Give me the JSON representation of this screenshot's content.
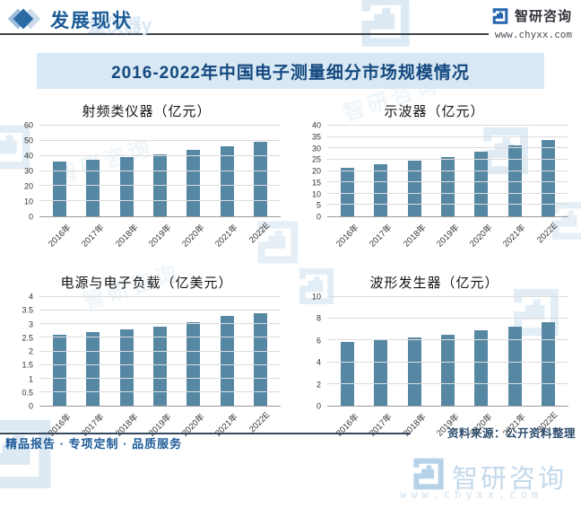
{
  "header": {
    "section_title": "发展现状",
    "brand_name": "智研咨询",
    "brand_url": "www.chyxx.com",
    "watermark_text": "量仪器y"
  },
  "banner": {
    "title": "2016-2022年中国电子测量细分市场规模情况"
  },
  "footer": {
    "source_label": "资料来源：公开资料整理",
    "tagline": "精品报告 · 专项定制 · 品质服务",
    "watermark_brand": "智研咨询",
    "watermark_url": "www.chyxx.com"
  },
  "icons": {
    "section_marker": "diamond-icon",
    "brand_logo": "zhiyan-maze-glyph"
  },
  "colors": {
    "bar_fill": "#5688a4",
    "accent_blue": "#1a5a96",
    "banner_bg": "#d8e8f4",
    "banner_text": "#15497f",
    "gridline": "#dcdcdc",
    "watermark": "#c3d9eb"
  },
  "chart_data": [
    {
      "type": "bar",
      "title": "射频类仪器（亿元）",
      "categories": [
        "2016年",
        "2017年",
        "2018年",
        "2019年",
        "2020年",
        "2021年",
        "2022E"
      ],
      "values": [
        36,
        37.3,
        39.4,
        41,
        43.7,
        46.4,
        49.5
      ],
      "ylim": [
        0,
        60
      ],
      "yticks": [
        "0",
        "10",
        "20",
        "30",
        "40",
        "50",
        "60"
      ],
      "grid": true,
      "legend": "none"
    },
    {
      "type": "bar",
      "title": "示波器（亿元）",
      "categories": [
        "2016年",
        "2017年",
        "2018年",
        "2019年",
        "2020年",
        "2021年",
        "2022E"
      ],
      "values": [
        21.3,
        22.9,
        24.4,
        26.3,
        28.7,
        31.2,
        33.7
      ],
      "ylim": [
        0,
        40
      ],
      "yticks": [
        "0",
        "5",
        "10",
        "15",
        "20",
        "25",
        "30",
        "35",
        "40"
      ],
      "grid": true,
      "legend": "none"
    },
    {
      "type": "bar",
      "title": "电源与电子负载（亿美元）",
      "categories": [
        "2016年",
        "2017年",
        "2018年",
        "2019年",
        "2020年",
        "2021年",
        "2022E"
      ],
      "values": [
        2.6,
        2.7,
        2.8,
        2.9,
        3.06,
        3.3,
        3.4
      ],
      "ylim": [
        0,
        4
      ],
      "yticks": [
        "0",
        "0.5",
        "1",
        "1.5",
        "2",
        "2.5",
        "3",
        "3.5",
        "4"
      ],
      "grid": true,
      "legend": "none"
    },
    {
      "type": "bar",
      "title": "波形发生器（亿元）",
      "categories": [
        "2016年",
        "2017年",
        "2018年",
        "2019年",
        "2020年",
        "2021年",
        "2022E"
      ],
      "values": [
        5.9,
        6.05,
        6.3,
        6.55,
        6.95,
        7.3,
        7.65
      ],
      "ylim": [
        0,
        10
      ],
      "yticks": [
        "0",
        "2",
        "4",
        "6",
        "8",
        "10"
      ],
      "grid": true,
      "legend": "none"
    }
  ]
}
